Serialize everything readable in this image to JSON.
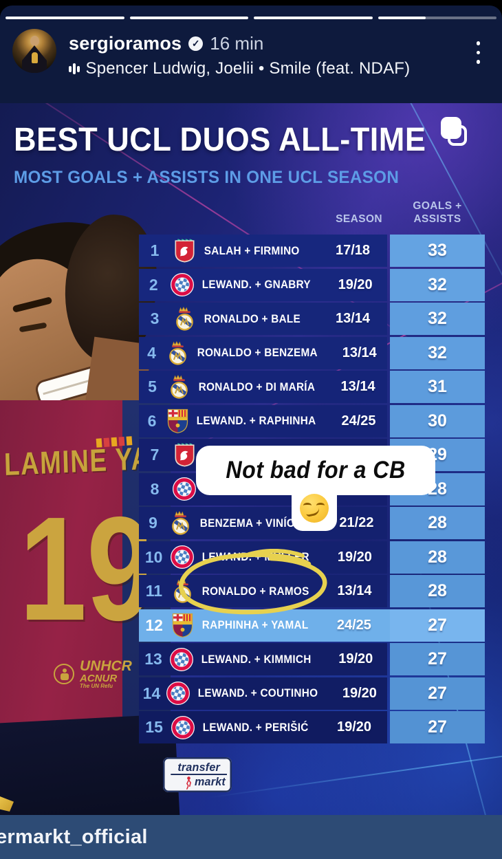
{
  "story": {
    "progress": {
      "segments": 4,
      "completed_segments": 3,
      "current_fill_percent": 40
    },
    "username": "sergioramos",
    "verified": "verified-badge",
    "timestamp": "16 min",
    "music": "Spencer Ludwig, Joelii • Smile (feat. NDAF)"
  },
  "graphic": {
    "title": "BEST UCL DUOS ALL-TIME",
    "subtitle": "MOST GOALS + ASSISTS IN ONE UCL SEASON",
    "columns": {
      "season": "SEASON",
      "goals_assists": "GOALS +\nASSISTS"
    },
    "rows": [
      {
        "rank": "1",
        "club": "liverpool",
        "duo": "SALAH + FIRMINO",
        "season": "17/18",
        "value": "33"
      },
      {
        "rank": "2",
        "club": "bayern",
        "duo": "LEWAND. + GNABRY",
        "season": "19/20",
        "value": "32"
      },
      {
        "rank": "3",
        "club": "real-madrid",
        "duo": "RONALDO + BALE",
        "season": "13/14",
        "value": "32"
      },
      {
        "rank": "4",
        "club": "real-madrid",
        "duo": "RONALDO + BENZEMA",
        "season": "13/14",
        "value": "32"
      },
      {
        "rank": "5",
        "club": "real-madrid",
        "duo": "RONALDO + DI MARÍA",
        "season": "13/14",
        "value": "31"
      },
      {
        "rank": "6",
        "club": "barcelona",
        "duo": "LEWAND. + RAPHINHA",
        "season": "24/25",
        "value": "30"
      },
      {
        "rank": "7",
        "club": "liverpool",
        "duo": "",
        "season": "",
        "value": "29",
        "covered": true
      },
      {
        "rank": "8",
        "club": "bayern",
        "duo": "",
        "season": "",
        "value": "28",
        "covered": true
      },
      {
        "rank": "9",
        "club": "real-madrid",
        "duo": "BENZEMA + VINÍCIUS",
        "season": "21/22",
        "value": "28"
      },
      {
        "rank": "10",
        "club": "bayern",
        "duo": "LEWAND. + MÜLLER",
        "season": "19/20",
        "value": "28"
      },
      {
        "rank": "11",
        "club": "real-madrid",
        "duo": "RONALDO + RAMOS",
        "season": "13/14",
        "value": "28",
        "circled": true
      },
      {
        "rank": "12",
        "club": "barcelona",
        "duo": "RAPHINHA + YAMAL",
        "season": "24/25",
        "value": "27",
        "highlighted": true
      },
      {
        "rank": "13",
        "club": "bayern",
        "duo": "LEWAND. + KIMMICH",
        "season": "19/20",
        "value": "27"
      },
      {
        "rank": "14",
        "club": "bayern",
        "duo": "LEWAND. + COUTINHO",
        "season": "19/20",
        "value": "27"
      },
      {
        "rank": "15",
        "club": "bayern",
        "duo": "LEWAND. + PERIŠIĆ",
        "season": "19/20",
        "value": "27"
      }
    ],
    "sticker_text": "Not bad for a CB",
    "sticker_emoji": "smirking-face",
    "photo": {
      "jersey_name": "LAMINE YA",
      "jersey_number": "19",
      "sponsor_line1": "UNHCR",
      "sponsor_line2": "ACNUR",
      "sponsor_sub": "The UN Refu"
    },
    "logo": {
      "line1": "transfer",
      "line2": "markt"
    }
  },
  "footer": {
    "handle_text": "ermarkt_official"
  },
  "colors": {
    "accent_light_blue": "#5d9ce6",
    "value_cell_blue": "#5d9cdd",
    "highlight_row_blue": "#6fb0ea",
    "marker_yellow": "#e7d14f",
    "footer_bar": "#2d4b75"
  }
}
